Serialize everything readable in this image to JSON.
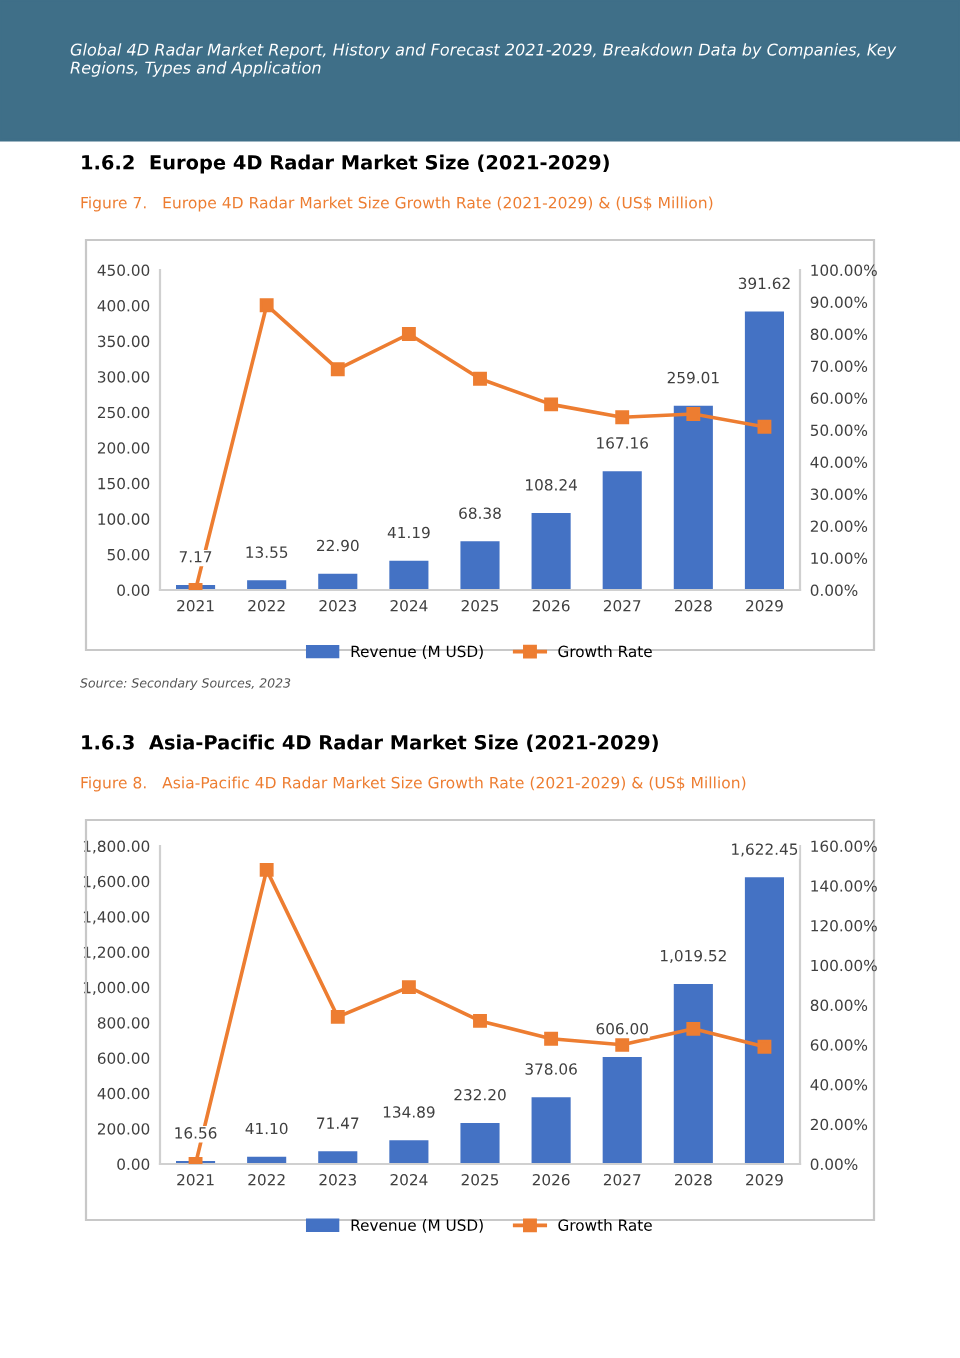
{
  "chart_data": [
    {
      "type": "bar",
      "title": "Figure 7.   Europe 4D Radar Market Size Growth Rate (2021-2029) & (US$ Million)",
      "annotations": [
        "Global 4D Radar Market Report, History and Forecast 2021-2029, Breakdown Data by Companies, Key Regions, Types and Application",
        "1.6.2  Europe 4D Radar Market Size (2021-2029)",
        "Source: Secondary Sources, 2023"
      ],
      "categories": [
        "2021",
        "2022",
        "2023",
        "2024",
        "2025",
        "2026",
        "2027",
        "2028",
        "2029"
      ],
      "series": [
        {
          "name": "Revenue (M USD)",
          "color": "#4472c4",
          "values": [
            7.17,
            13.55,
            22.9,
            41.19,
            68.38,
            108.24,
            167.16,
            259.01,
            391.62
          ],
          "value_labels": [
            "7.17",
            "13.55",
            "22.90",
            "41.19",
            "68.38",
            "108.24",
            "167.16",
            "259.01",
            "391.62"
          ]
        },
        {
          "name": "Growth Rate",
          "type": "line",
          "axis": "y2",
          "color": "#ed7d31",
          "marker": "square",
          "values": [
            0,
            89,
            69,
            80,
            66,
            58,
            54,
            55,
            51
          ]
        }
      ],
      "ylim": [
        0,
        450
      ],
      "yticks": [
        {
          "value": 0,
          "label": "0.00"
        },
        {
          "value": 50,
          "label": "50.00"
        },
        {
          "value": 100,
          "label": "100.00"
        },
        {
          "value": 150,
          "label": "150.00"
        },
        {
          "value": 200,
          "label": "200.00"
        },
        {
          "value": 250,
          "label": "250.00"
        },
        {
          "value": 300,
          "label": "300.00"
        },
        {
          "value": 350,
          "label": "350.00"
        },
        {
          "value": 400,
          "label": "400.00"
        },
        {
          "value": 450,
          "label": "450.00"
        }
      ],
      "y2lim": [
        0,
        100
      ],
      "y2ticks": [
        {
          "value": 0,
          "label": "0.00%"
        },
        {
          "value": 10,
          "label": "10.00%"
        },
        {
          "value": 20,
          "label": "20.00%"
        },
        {
          "value": 30,
          "label": "30.00%"
        },
        {
          "value": 40,
          "label": "40.00%"
        },
        {
          "value": 50,
          "label": "50.00%"
        },
        {
          "value": 60,
          "label": "60.00%"
        },
        {
          "value": 70,
          "label": "70.00%"
        },
        {
          "value": 80,
          "label": "80.00%"
        },
        {
          "value": 90,
          "label": "90.00%"
        },
        {
          "value": 100,
          "label": "100.00%"
        }
      ],
      "legend": "bottom"
    },
    {
      "type": "bar",
      "title": "Figure 8.   Asia-Pacific 4D Radar Market Size Growth Rate (2021-2029) & (US$ Million)",
      "annotations": [
        "1.6.3  Asia-Pacific 4D Radar Market Size (2021-2029)"
      ],
      "categories": [
        "2021",
        "2022",
        "2023",
        "2024",
        "2025",
        "2026",
        "2027",
        "2028",
        "2029"
      ],
      "series": [
        {
          "name": "Revenue (M USD)",
          "color": "#4472c4",
          "values": [
            16.56,
            41.1,
            71.47,
            134.89,
            232.2,
            378.06,
            606.0,
            1019.52,
            1622.45
          ],
          "value_labels": [
            "16.56",
            "41.10",
            "71.47",
            "134.89",
            "232.20",
            "378.06",
            "606.00",
            "1,019.52",
            "1,622.45"
          ]
        },
        {
          "name": "Growth Rate",
          "type": "line",
          "axis": "y2",
          "color": "#ed7d31",
          "marker": "square",
          "values": [
            0,
            148,
            74,
            89,
            72,
            63,
            60,
            68,
            59
          ]
        }
      ],
      "ylim": [
        0,
        1800
      ],
      "yticks": [
        {
          "value": 0,
          "label": "0.00"
        },
        {
          "value": 200,
          "label": "200.00"
        },
        {
          "value": 400,
          "label": "400.00"
        },
        {
          "value": 600,
          "label": "600.00"
        },
        {
          "value": 800,
          "label": "800.00"
        },
        {
          "value": 1000,
          "label": "1,000.00"
        },
        {
          "value": 1200,
          "label": "1,200.00"
        },
        {
          "value": 1400,
          "label": "1,400.00"
        },
        {
          "value": 1600,
          "label": "1,600.00"
        },
        {
          "value": 1800,
          "label": "1,800.00"
        }
      ],
      "y2lim": [
        0,
        160
      ],
      "y2ticks": [
        {
          "value": 0,
          "label": "0.00%"
        },
        {
          "value": 20,
          "label": "20.00%"
        },
        {
          "value": 40,
          "label": "40.00%"
        },
        {
          "value": 60,
          "label": "60.00%"
        },
        {
          "value": 80,
          "label": "80.00%"
        },
        {
          "value": 100,
          "label": "100.00%"
        },
        {
          "value": 120,
          "label": "120.00%"
        },
        {
          "value": 140,
          "label": "140.00%"
        },
        {
          "value": 160,
          "label": "160.00%"
        }
      ],
      "legend": "bottom"
    }
  ]
}
